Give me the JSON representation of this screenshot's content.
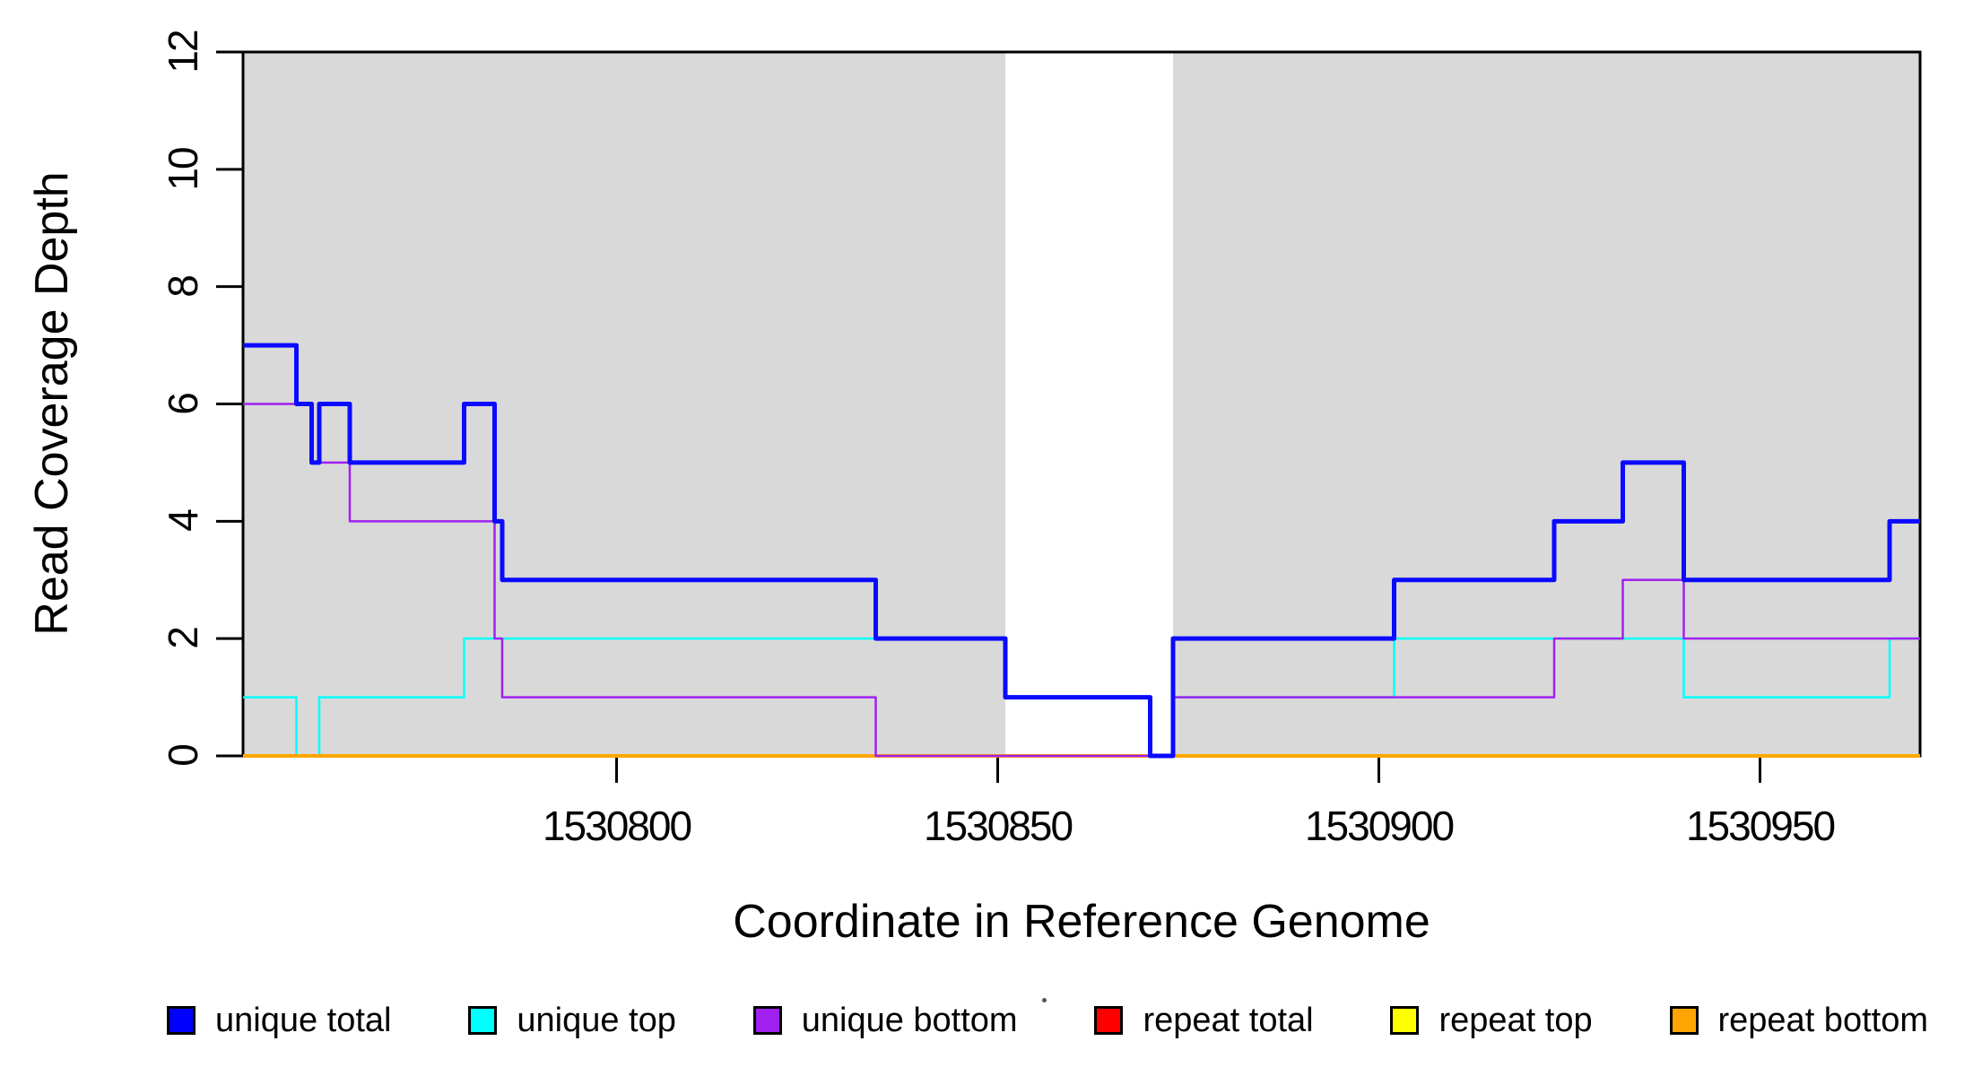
{
  "chart_data": {
    "type": "line",
    "subtype": "step-coverage",
    "title": "",
    "xlabel": "Coordinate in Reference Genome",
    "ylabel": "Read Coverage Depth",
    "xlim": [
      1530751,
      1530971
    ],
    "ylim": [
      0,
      12
    ],
    "x_ticks": [
      1530800,
      1530850,
      1530900,
      1530950
    ],
    "y_ticks": [
      0,
      2,
      4,
      6,
      8,
      10,
      12
    ],
    "grid": false,
    "box_color": "#000000",
    "background_color": "#ffffff",
    "masked_regions": {
      "color": "#d9d9d9",
      "ranges": [
        [
          1530751,
          1530851
        ],
        [
          1530873,
          1530971
        ]
      ]
    },
    "legend_position": "bottom",
    "series": [
      {
        "id": "unique_total",
        "label": "unique total",
        "color": "#0a0aff",
        "width": 5,
        "steps": [
          [
            1530751,
            7
          ],
          [
            1530758,
            6
          ],
          [
            1530760,
            5
          ],
          [
            1530761,
            6
          ],
          [
            1530765,
            5
          ],
          [
            1530780,
            6
          ],
          [
            1530784,
            4
          ],
          [
            1530785,
            3
          ],
          [
            1530834,
            2
          ],
          [
            1530851,
            1
          ],
          [
            1530870,
            0
          ],
          [
            1530873,
            2
          ],
          [
            1530902,
            3
          ],
          [
            1530923,
            4
          ],
          [
            1530932,
            5
          ],
          [
            1530940,
            3
          ],
          [
            1530967,
            4
          ]
        ]
      },
      {
        "id": "unique_top",
        "label": "unique top",
        "color": "#00ffff",
        "width": 2.5,
        "steps": [
          [
            1530751,
            1
          ],
          [
            1530758,
            0
          ],
          [
            1530761,
            1
          ],
          [
            1530780,
            2
          ],
          [
            1530851,
            1
          ],
          [
            1530870,
            0
          ],
          [
            1530873,
            1
          ],
          [
            1530902,
            2
          ],
          [
            1530940,
            1
          ],
          [
            1530967,
            2
          ]
        ]
      },
      {
        "id": "unique_bottom",
        "label": "unique bottom",
        "color": "#a020f0",
        "width": 2.5,
        "steps": [
          [
            1530751,
            6
          ],
          [
            1530760,
            5
          ],
          [
            1530765,
            4
          ],
          [
            1530784,
            2
          ],
          [
            1530785,
            1
          ],
          [
            1530834,
            0
          ],
          [
            1530873,
            1
          ],
          [
            1530923,
            2
          ],
          [
            1530932,
            3
          ],
          [
            1530940,
            2
          ]
        ]
      },
      {
        "id": "repeat_total",
        "label": "repeat total",
        "color": "#ff0000",
        "width": 2.5,
        "steps": [
          [
            1530751,
            0
          ]
        ]
      },
      {
        "id": "repeat_top",
        "label": "repeat top",
        "color": "#ffff00",
        "width": 2.5,
        "steps": [
          [
            1530751,
            0
          ]
        ]
      },
      {
        "id": "repeat_bottom",
        "label": "repeat bottom",
        "color": "#ffa500",
        "width": 4,
        "steps": [
          [
            1530751,
            0
          ]
        ]
      }
    ],
    "draw_order": [
      "repeat_total",
      "repeat_top",
      "unique_top",
      "repeat_bottom",
      "unique_bottom",
      "unique_total"
    ]
  },
  "stray_mark": {
    "visible": true
  }
}
